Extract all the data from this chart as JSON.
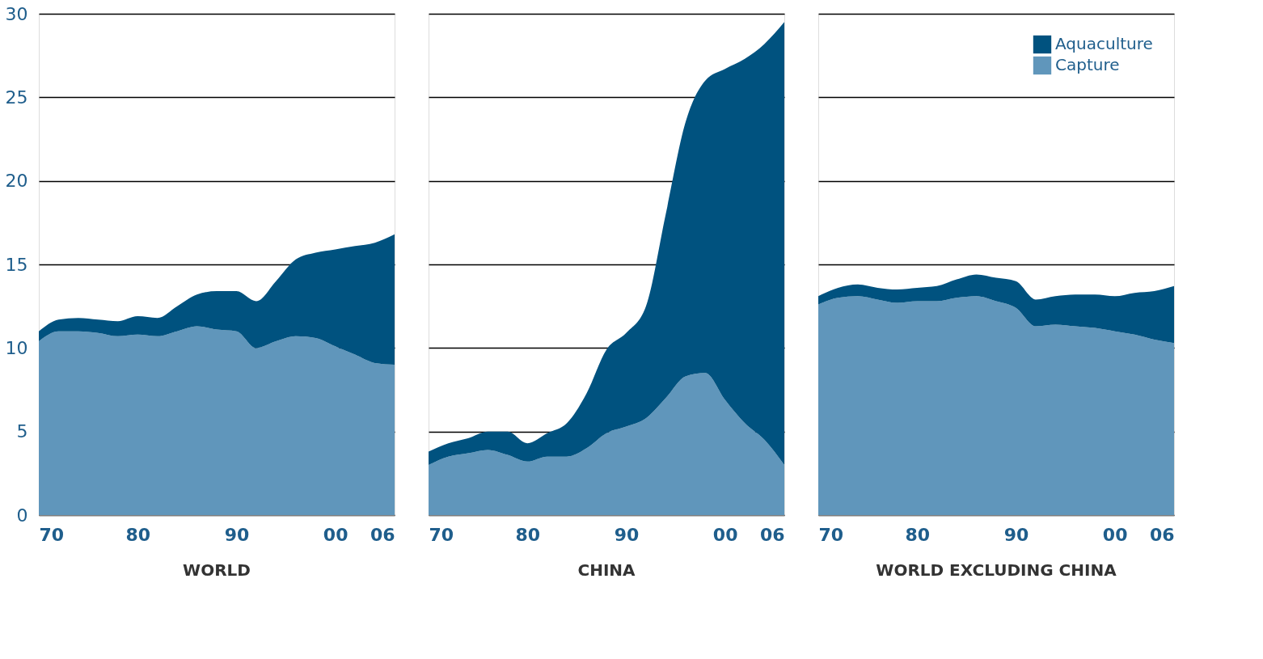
{
  "chart_data": [
    {
      "type": "area",
      "title": "WORLD",
      "stacked": true,
      "grid": "y",
      "tick_labels": true,
      "x": [
        1970,
        1972,
        1974,
        1976,
        1978,
        1980,
        1982,
        1984,
        1986,
        1988,
        1990,
        1992,
        1994,
        1996,
        1998,
        2000,
        2002,
        2004,
        2006
      ],
      "xlim": [
        1970,
        2006
      ],
      "xticks": [
        {
          "value": 1970,
          "label": "70"
        },
        {
          "value": 1980,
          "label": "80"
        },
        {
          "value": 1990,
          "label": "90"
        },
        {
          "value": 2000,
          "label": "00"
        },
        {
          "value": 2006,
          "label": "06"
        }
      ],
      "ylim": [
        0,
        30
      ],
      "yticks": [
        0,
        5,
        10,
        15,
        20,
        25,
        30
      ],
      "series": [
        {
          "color": "#6096bb",
          "values": [
            10.4,
            11.0,
            11.0,
            10.9,
            10.7,
            10.8,
            10.7,
            11.0,
            11.3,
            11.1,
            11.0,
            10.0,
            10.4,
            10.7,
            10.6,
            10.1,
            9.6,
            9.1,
            9.0
          ]
        },
        {
          "color": "#00527f",
          "values": [
            0.6,
            0.7,
            0.8,
            0.8,
            0.9,
            1.1,
            1.1,
            1.5,
            1.9,
            2.3,
            2.4,
            2.8,
            3.6,
            4.6,
            5.1,
            5.8,
            6.5,
            7.2,
            7.8
          ]
        }
      ]
    },
    {
      "type": "area",
      "title": "CHINA",
      "stacked": true,
      "grid": "y",
      "tick_labels": "x",
      "x": [
        1970,
        1972,
        1974,
        1976,
        1978,
        1980,
        1982,
        1984,
        1986,
        1988,
        1990,
        1992,
        1994,
        1996,
        1998,
        2000,
        2002,
        2004,
        2006
      ],
      "xlim": [
        1970,
        2006
      ],
      "xticks": [
        {
          "value": 1970,
          "label": "70"
        },
        {
          "value": 1980,
          "label": "80"
        },
        {
          "value": 1990,
          "label": "90"
        },
        {
          "value": 2000,
          "label": "00"
        },
        {
          "value": 2006,
          "label": "06"
        }
      ],
      "ylim": [
        0,
        30
      ],
      "yticks": [
        0,
        5,
        10,
        15,
        20,
        25,
        30
      ],
      "series": [
        {
          "color": "#6096bb",
          "values": [
            3.0,
            3.5,
            3.7,
            3.9,
            3.6,
            3.2,
            3.5,
            3.5,
            4.0,
            4.9,
            5.3,
            5.8,
            7.0,
            8.3,
            8.5,
            6.9,
            5.5,
            4.5,
            3.0
          ]
        },
        {
          "color": "#00527f",
          "values": [
            0.8,
            0.8,
            0.9,
            1.1,
            1.4,
            1.1,
            1.4,
            2.0,
            3.3,
            5.0,
            5.6,
            6.7,
            11.0,
            15.2,
            17.5,
            19.8,
            21.8,
            23.7,
            26.5
          ]
        }
      ]
    },
    {
      "type": "area",
      "title": "WORLD EXCLUDING CHINA",
      "stacked": true,
      "grid": "y",
      "tick_labels": "x",
      "x": [
        1970,
        1972,
        1974,
        1976,
        1978,
        1980,
        1982,
        1984,
        1986,
        1988,
        1990,
        1992,
        1994,
        1996,
        1998,
        2000,
        2002,
        2004,
        2006
      ],
      "xlim": [
        1970,
        2006
      ],
      "xticks": [
        {
          "value": 1970,
          "label": "70"
        },
        {
          "value": 1980,
          "label": "80"
        },
        {
          "value": 1990,
          "label": "90"
        },
        {
          "value": 2000,
          "label": "00"
        },
        {
          "value": 2006,
          "label": "06"
        }
      ],
      "ylim": [
        0,
        30
      ],
      "yticks": [
        0,
        5,
        10,
        15,
        20,
        25,
        30
      ],
      "series": [
        {
          "name": "Capture",
          "color": "#6096bb",
          "values": [
            12.6,
            13.0,
            13.1,
            12.9,
            12.7,
            12.8,
            12.8,
            13.0,
            13.1,
            12.8,
            12.4,
            11.3,
            11.4,
            11.3,
            11.2,
            11.0,
            10.8,
            10.5,
            10.3
          ]
        },
        {
          "name": "Aquaculture",
          "color": "#00527f",
          "values": [
            0.5,
            0.6,
            0.7,
            0.7,
            0.8,
            0.8,
            0.9,
            1.1,
            1.3,
            1.4,
            1.6,
            1.6,
            1.7,
            1.9,
            2.0,
            2.1,
            2.5,
            2.9,
            3.4
          ]
        }
      ],
      "legend": "top right"
    }
  ]
}
